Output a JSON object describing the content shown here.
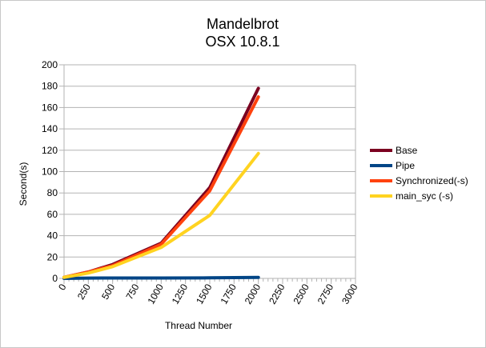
{
  "chart_data": {
    "type": "line",
    "title": [
      "Mandelbrot",
      "OSX 10.8.1"
    ],
    "xlabel": "Thread Number",
    "ylabel": "Second(s)",
    "xlim": [
      0,
      3000
    ],
    "ylim": [
      0,
      200
    ],
    "xticks": [
      0,
      250,
      500,
      750,
      1000,
      1250,
      1500,
      1750,
      2000,
      2250,
      2500,
      2750,
      3000
    ],
    "yticks": [
      0,
      20,
      40,
      60,
      80,
      100,
      120,
      140,
      160,
      180,
      200
    ],
    "grid": "horizontal",
    "legend_position": "right",
    "series": [
      {
        "name": "Base",
        "color": "#7b0020",
        "points": [
          [
            0,
            1
          ],
          [
            250,
            6
          ],
          [
            500,
            13
          ],
          [
            1000,
            33
          ],
          [
            1500,
            85
          ],
          [
            2000,
            178
          ]
        ]
      },
      {
        "name": "Pipe",
        "color": "#004586",
        "points": [
          [
            0,
            0
          ],
          [
            250,
            0.3
          ],
          [
            500,
            0.4
          ],
          [
            1000,
            0.4
          ],
          [
            1500,
            0.5
          ],
          [
            2000,
            1
          ]
        ]
      },
      {
        "name": "Synchronized(-s)",
        "color": "#ff420e",
        "points": [
          [
            0,
            1
          ],
          [
            250,
            6
          ],
          [
            500,
            12
          ],
          [
            1000,
            32
          ],
          [
            1500,
            82
          ],
          [
            2000,
            170
          ]
        ]
      },
      {
        "name": "main_syc (-s)",
        "color": "#ffd320",
        "points": [
          [
            0,
            1
          ],
          [
            250,
            5
          ],
          [
            500,
            11
          ],
          [
            1000,
            29
          ],
          [
            1500,
            59
          ],
          [
            2000,
            117
          ]
        ]
      }
    ]
  }
}
